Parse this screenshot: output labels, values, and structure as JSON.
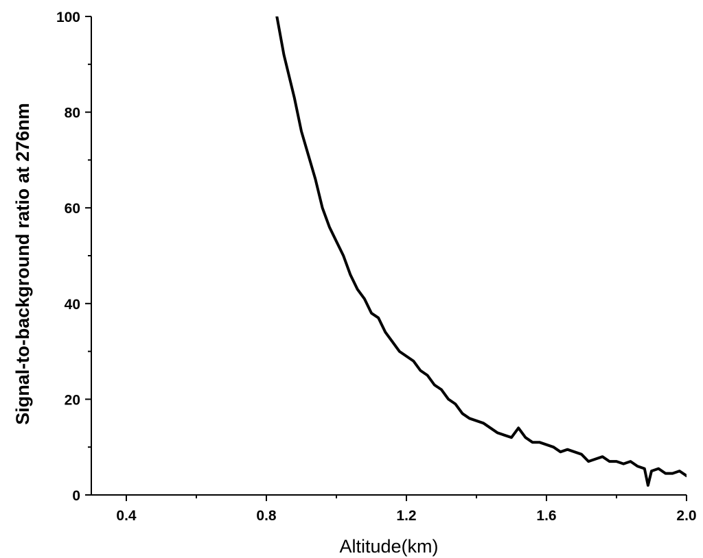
{
  "chart_data": {
    "type": "line",
    "title": "",
    "xlabel": "Altitude(km)",
    "ylabel": "Signal-to-background ratio at 276nm",
    "xlim": [
      0.3,
      2.0
    ],
    "ylim": [
      0,
      100
    ],
    "xticks": [
      "0.4",
      "0.8",
      "1.2",
      "1.6",
      "2.0"
    ],
    "yticks": [
      "0",
      "20",
      "40",
      "60",
      "80",
      "100"
    ],
    "grid": false,
    "series": [
      {
        "color": "#000000",
        "x": [
          0.83,
          0.85,
          0.88,
          0.9,
          0.92,
          0.94,
          0.96,
          0.98,
          1.0,
          1.02,
          1.04,
          1.06,
          1.08,
          1.1,
          1.12,
          1.14,
          1.16,
          1.18,
          1.2,
          1.22,
          1.24,
          1.26,
          1.28,
          1.3,
          1.32,
          1.34,
          1.36,
          1.38,
          1.4,
          1.42,
          1.44,
          1.46,
          1.48,
          1.5,
          1.52,
          1.54,
          1.56,
          1.58,
          1.6,
          1.62,
          1.64,
          1.66,
          1.68,
          1.7,
          1.72,
          1.74,
          1.76,
          1.78,
          1.8,
          1.82,
          1.84,
          1.86,
          1.88,
          1.89,
          1.9,
          1.92,
          1.94,
          1.96,
          1.98,
          2.0
        ],
        "values": [
          100,
          92,
          83,
          76,
          71,
          66,
          60,
          56,
          53,
          50,
          46,
          43,
          41,
          38,
          37,
          34,
          32,
          30,
          29,
          28,
          26,
          25,
          23,
          22,
          20,
          19,
          17,
          16,
          15.5,
          15,
          14,
          13,
          12.5,
          12,
          14,
          12,
          11,
          11,
          10.5,
          10,
          9,
          9.5,
          9,
          8.5,
          7,
          7.5,
          8,
          7,
          7,
          6.5,
          7,
          6,
          5.5,
          2,
          5,
          5.5,
          4.5,
          4.5,
          5,
          4
        ]
      }
    ]
  }
}
